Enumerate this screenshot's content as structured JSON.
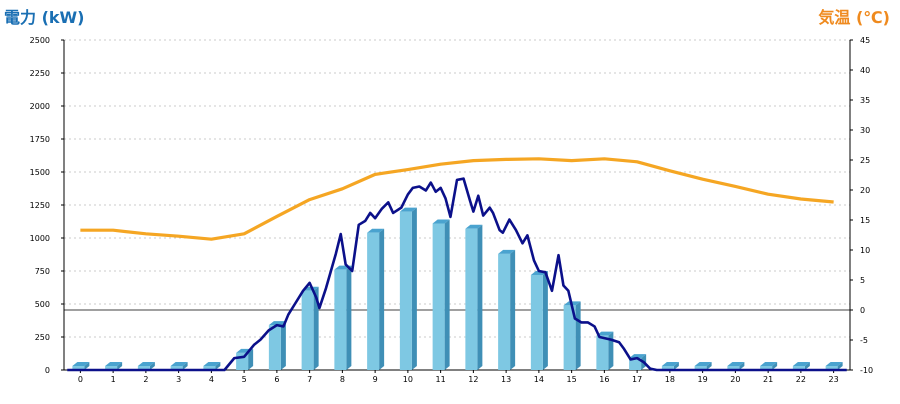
{
  "chart_data": {
    "type": "bar+line",
    "left_axis_title": "電力 (kW)",
    "right_axis_title": "気温 (℃)",
    "categories": [
      "0",
      "1",
      "2",
      "3",
      "4",
      "5",
      "6",
      "7",
      "8",
      "9",
      "10",
      "11",
      "12",
      "13",
      "14",
      "15",
      "16",
      "17",
      "18",
      "19",
      "20",
      "21",
      "22",
      "23"
    ],
    "left_ylim": [
      0,
      2500
    ],
    "left_ticks": [
      0,
      250,
      500,
      750,
      1000,
      1250,
      1500,
      1750,
      2000,
      2250,
      2500
    ],
    "right_ylim": [
      -10,
      45
    ],
    "right_ticks": [
      -10,
      -5,
      0,
      5,
      10,
      15,
      20,
      25,
      30,
      35,
      40,
      45
    ],
    "grid": true,
    "bar_series": {
      "values": [
        8,
        8,
        8,
        8,
        8,
        130,
        340,
        600,
        760,
        1040,
        1200,
        1110,
        1070,
        880,
        720,
        490,
        260,
        90,
        8,
        8,
        8,
        8,
        8,
        8
      ],
      "color": "#7ec8e3"
    },
    "power_line": {
      "color": "#0b108a",
      "points": [
        [
          -0.4,
          0
        ],
        [
          3.5,
          0
        ],
        [
          4.0,
          0
        ],
        [
          4.4,
          0
        ],
        [
          4.7,
          90
        ],
        [
          5.0,
          100
        ],
        [
          5.3,
          190
        ],
        [
          5.5,
          230
        ],
        [
          5.75,
          300
        ],
        [
          6.0,
          340
        ],
        [
          6.2,
          330
        ],
        [
          6.35,
          420
        ],
        [
          6.55,
          500
        ],
        [
          6.8,
          600
        ],
        [
          7.0,
          660
        ],
        [
          7.2,
          550
        ],
        [
          7.3,
          470
        ],
        [
          7.5,
          620
        ],
        [
          7.8,
          880
        ],
        [
          7.95,
          1030
        ],
        [
          8.1,
          800
        ],
        [
          8.3,
          750
        ],
        [
          8.5,
          1100
        ],
        [
          8.7,
          1130
        ],
        [
          8.85,
          1190
        ],
        [
          9.0,
          1150
        ],
        [
          9.2,
          1220
        ],
        [
          9.4,
          1270
        ],
        [
          9.55,
          1190
        ],
        [
          9.8,
          1230
        ],
        [
          10.0,
          1330
        ],
        [
          10.15,
          1380
        ],
        [
          10.35,
          1390
        ],
        [
          10.55,
          1360
        ],
        [
          10.7,
          1420
        ],
        [
          10.85,
          1350
        ],
        [
          11.0,
          1380
        ],
        [
          11.15,
          1300
        ],
        [
          11.3,
          1160
        ],
        [
          11.5,
          1440
        ],
        [
          11.7,
          1450
        ],
        [
          11.9,
          1280
        ],
        [
          12.0,
          1200
        ],
        [
          12.15,
          1320
        ],
        [
          12.3,
          1170
        ],
        [
          12.5,
          1230
        ],
        [
          12.6,
          1190
        ],
        [
          12.8,
          1060
        ],
        [
          12.9,
          1040
        ],
        [
          13.1,
          1140
        ],
        [
          13.3,
          1060
        ],
        [
          13.5,
          960
        ],
        [
          13.65,
          1020
        ],
        [
          13.85,
          830
        ],
        [
          14.0,
          750
        ],
        [
          14.2,
          740
        ],
        [
          14.4,
          600
        ],
        [
          14.6,
          870
        ],
        [
          14.75,
          640
        ],
        [
          14.9,
          600
        ],
        [
          15.1,
          390
        ],
        [
          15.3,
          360
        ],
        [
          15.5,
          360
        ],
        [
          15.7,
          330
        ],
        [
          15.85,
          250
        ],
        [
          16.2,
          230
        ],
        [
          16.45,
          210
        ],
        [
          16.6,
          160
        ],
        [
          16.8,
          80
        ],
        [
          17.0,
          90
        ],
        [
          17.2,
          60
        ],
        [
          17.4,
          10
        ],
        [
          17.6,
          0
        ],
        [
          23.4,
          0
        ]
      ]
    },
    "temperature_line": {
      "color": "#f5a623",
      "points": [
        [
          0,
          13.3
        ],
        [
          1,
          13.3
        ],
        [
          2,
          12.7
        ],
        [
          3,
          12.3
        ],
        [
          4,
          11.8
        ],
        [
          5,
          12.7
        ],
        [
          6,
          15.6
        ],
        [
          7,
          18.4
        ],
        [
          8,
          20.2
        ],
        [
          9,
          22.6
        ],
        [
          10,
          23.4
        ],
        [
          11,
          24.3
        ],
        [
          12,
          24.9
        ],
        [
          13,
          25.1
        ],
        [
          14,
          25.2
        ],
        [
          15,
          24.9
        ],
        [
          16,
          25.2
        ],
        [
          17,
          24.7
        ],
        [
          18,
          23.2
        ],
        [
          19,
          21.8
        ],
        [
          20,
          20.6
        ],
        [
          21,
          19.3
        ],
        [
          22,
          18.5
        ],
        [
          23,
          18.0
        ]
      ]
    }
  }
}
